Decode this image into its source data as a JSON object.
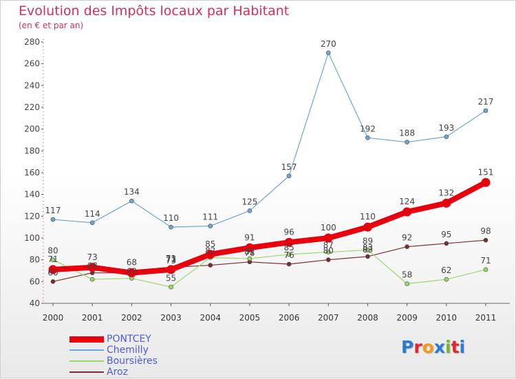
{
  "title": "Evolution des Impôts locaux par Habitant",
  "subtitle": "(en € et par an)",
  "logo_text": "Proxiti",
  "logo_colors": [
    "#2b7bd6",
    "#e0262e",
    "#f29a1f",
    "#2b7bd6",
    "#7ab82b",
    "#e0262e",
    "#2b7bd6"
  ],
  "chart_data": {
    "type": "line",
    "categories": [
      "2000",
      "2001",
      "2002",
      "2003",
      "2004",
      "2005",
      "2006",
      "2007",
      "2008",
      "2009",
      "2010",
      "2011"
    ],
    "ylim": [
      40,
      280
    ],
    "yticks": [
      40,
      60,
      80,
      100,
      120,
      140,
      160,
      180,
      200,
      220,
      240,
      260,
      280
    ],
    "grid": false,
    "legend_position": "bottom-left",
    "series": [
      {
        "name": "Aroz",
        "color": "#7d2a33",
        "values": [
          60,
          68,
          68,
          73,
          75,
          78,
          76,
          80,
          83,
          92,
          95,
          98
        ],
        "labels": [
          "60",
          "",
          "",
          "73",
          "",
          "78",
          "76",
          "80",
          "83",
          "92",
          "95",
          "98"
        ]
      },
      {
        "name": "Boursières",
        "color": "#9bd86b",
        "values": [
          80,
          62,
          63,
          55,
          82,
          81,
          85,
          87,
          89,
          58,
          62,
          71
        ],
        "labels": [
          "80",
          "",
          "",
          "55",
          "",
          "",
          "",
          "",
          "89",
          "58",
          "62",
          "71"
        ]
      },
      {
        "name": "Chemilly",
        "color": "#6ea6d8",
        "values": [
          117,
          114,
          134,
          110,
          111,
          125,
          157,
          270,
          192,
          188,
          193,
          217
        ],
        "labels": [
          "117",
          "114",
          "134",
          "110",
          "111",
          "125",
          "157",
          "270",
          "192",
          "188",
          "193",
          "217"
        ]
      },
      {
        "name": "PONTCEY",
        "color": "#e8000d",
        "values": [
          71,
          73,
          68,
          71,
          85,
          91,
          96,
          100,
          110,
          124,
          132,
          151
        ],
        "labels": [
          "71",
          "73",
          "68",
          "71",
          "85",
          "91",
          "96",
          "100",
          "110",
          "124",
          "132",
          "151"
        ]
      }
    ],
    "extra_labels": [
      {
        "category": "2001",
        "value": 68,
        "text": "68"
      },
      {
        "category": "2002",
        "value": 63,
        "text": "63"
      },
      {
        "category": "2003",
        "value": 73,
        "text": "73"
      },
      {
        "category": "2004",
        "value": 82,
        "text": "82"
      },
      {
        "category": "2005",
        "value": 81,
        "text": "81"
      },
      {
        "category": "2006",
        "value": 85,
        "text": "85"
      },
      {
        "category": "2007",
        "value": 87,
        "text": "87"
      },
      {
        "category": "2008",
        "value": 83,
        "text": "83"
      }
    ]
  },
  "legend": [
    {
      "label": "PONTCEY",
      "color": "#e8000d",
      "thick": true
    },
    {
      "label": "Chemilly",
      "color": "#6ea6d8",
      "thick": false
    },
    {
      "label": "Boursières",
      "color": "#9bd86b",
      "thick": false
    },
    {
      "label": "Aroz",
      "color": "#7d2a33",
      "thick": false
    }
  ]
}
